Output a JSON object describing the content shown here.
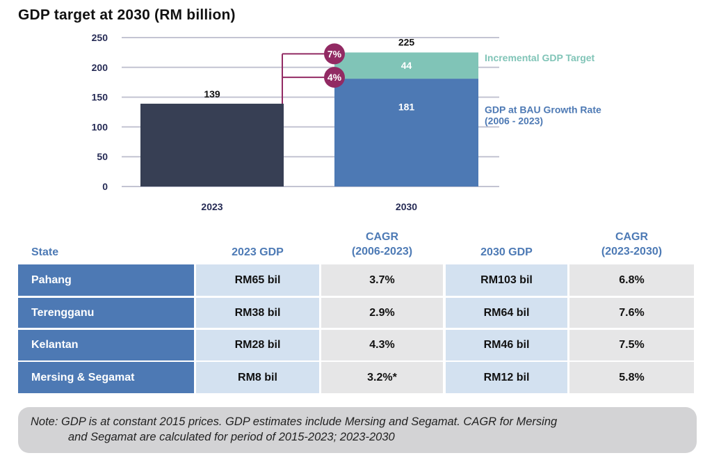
{
  "title": "GDP target at 2030 (RM billion)",
  "chart_data": {
    "type": "bar",
    "stacked": true,
    "title": "GDP target at 2030 (RM billion)",
    "xlabel": "",
    "ylabel": "",
    "categories": [
      "2023",
      "2030"
    ],
    "ylim": [
      0,
      250
    ],
    "yticks": [
      0,
      50,
      100,
      150,
      200,
      250
    ],
    "ytick_labels": [
      "0",
      "50",
      "100",
      "150",
      "200",
      "250"
    ],
    "grid": true,
    "series": [
      {
        "name": "GDP 2023",
        "color": "#373f54",
        "values": [
          139,
          null
        ]
      },
      {
        "name": "GDP at BAU Growth Rate (2006 - 2023)",
        "color": "#4d79b4",
        "values": [
          null,
          181
        ]
      },
      {
        "name": "Incremental GDP Target",
        "color": "#80c4b7",
        "values": [
          null,
          44
        ]
      }
    ],
    "data_labels": {
      "bar_2023": "139",
      "bau_2030": "181",
      "incremental_2030": "44",
      "total_2030": "225"
    },
    "legend": {
      "incremental_line1": "Incremental GDP Target",
      "bau_line1": "GDP at BAU Growth Rate",
      "bau_line2": "(2006 - 2023)",
      "placement": "right"
    },
    "annotations": [
      {
        "label": "7%",
        "connects_to_value": 225,
        "color": "#922a63"
      },
      {
        "label": "4%",
        "connects_to_value": 181,
        "color": "#922a63"
      }
    ]
  },
  "table": {
    "headers": {
      "state": "State",
      "gdp2023": "2023 GDP",
      "cagr1_line1": "CAGR",
      "cagr1_line2": "(2006-2023)",
      "gdp2030": "2030 GDP",
      "cagr2_line1": "CAGR",
      "cagr2_line2": "(2023-2030)"
    },
    "rows": [
      {
        "state": "Pahang",
        "gdp2023": "RM65 bil",
        "cagr1": "3.7%",
        "gdp2030": "RM103 bil",
        "cagr2": "6.8%"
      },
      {
        "state": "Terengganu",
        "gdp2023": "RM38 bil",
        "cagr1": "2.9%",
        "gdp2030": "RM64 bil",
        "cagr2": "7.6%"
      },
      {
        "state": "Kelantan",
        "gdp2023": "RM28 bil",
        "cagr1": "4.3%",
        "gdp2030": "RM46 bil",
        "cagr2": "7.5%"
      },
      {
        "state": "Mersing & Segamat",
        "gdp2023": "RM8 bil",
        "cagr1": "3.2%*",
        "gdp2030": "RM12 bil",
        "cagr2": "5.8%"
      }
    ]
  },
  "note": {
    "line1": "Note: GDP is at constant 2015 prices. GDP estimates include Mersing and Segamat. CAGR for Mersing",
    "line2": "and Segamat are calculated for period of 2015-2023; 2023-2030"
  }
}
